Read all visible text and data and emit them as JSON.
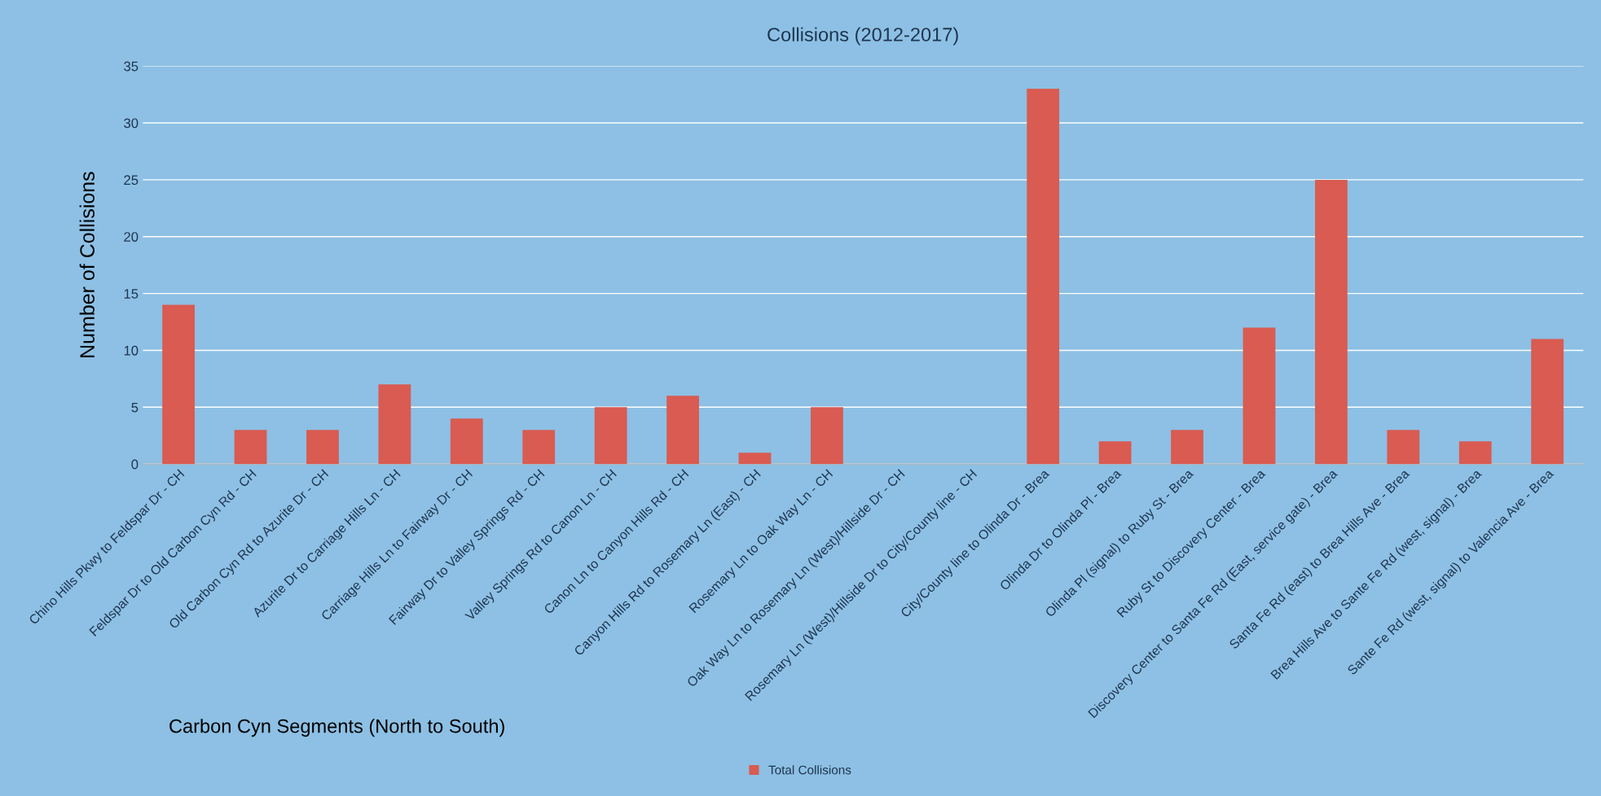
{
  "chart_data": {
    "type": "bar",
    "title": "Collisions (2012-2017)",
    "xlabel": "Carbon Cyn Segments (North to South)",
    "ylabel": "Number of Collisions",
    "categories": [
      "Chino Hills Pkwy to Feldspar Dr - CH",
      "Feldspar Dr to Old Carbon Cyn Rd - CH",
      "Old Carbon Cyn Rd to Azurite Dr - CH",
      "Azurite Dr to Carriage Hills Ln - CH",
      "Carriage Hills Ln to Fairway Dr - CH",
      "Fairway Dr to Valley Springs Rd - CH",
      "Valley Springs Rd to Canon Ln - CH",
      "Canon Ln to Canyon Hills Rd - CH",
      "Canyon Hills Rd to Rosemary Ln (East) - CH",
      "Rosemary Ln to Oak Way Ln - CH",
      "Oak Way Ln to Rosemary Ln (West)/Hillside Dr - CH",
      "Rosemary Ln (West)/Hillside Dr to City/County line - CH",
      "City/County line to Olinda Dr - Brea",
      "Olinda Dr to Olinda Pl - Brea",
      "Olinda Pl (signal) to Ruby St - Brea",
      "Ruby St to Discovery Center - Brea",
      "Discovery Center to Santa Fe Rd (East, service gate) - Brea",
      "Santa Fe Rd (east) to Brea Hills Ave - Brea",
      "Brea Hills Ave to Sante Fe Rd (west, signal) - Brea",
      "Sante Fe Rd (west, signal) to Valencia Ave - Brea"
    ],
    "series": [
      {
        "name": "Total Collisions",
        "color": "#d95b52",
        "values": [
          14,
          3,
          3,
          7,
          4,
          3,
          5,
          6,
          1,
          5,
          0,
          0,
          33,
          2,
          3,
          12,
          25,
          3,
          2,
          11
        ]
      }
    ],
    "ylim": [
      0,
      35
    ],
    "yticks": [
      0,
      5,
      10,
      15,
      20,
      25,
      30,
      35
    ],
    "grid": "y",
    "legend": "bottom"
  }
}
